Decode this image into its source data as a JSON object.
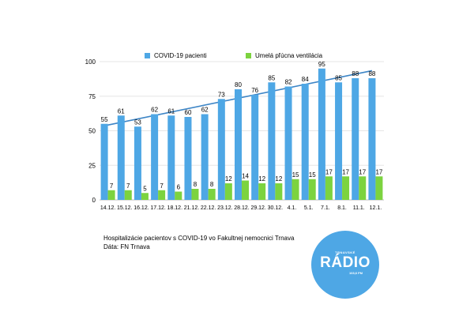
{
  "chart_data": {
    "type": "bar",
    "categories": [
      "14.12.",
      "15.12.",
      "16.12.",
      "17.12.",
      "18.12.",
      "21.12.",
      "22.12.",
      "23.12.",
      "28.12.",
      "29.12.",
      "30.12.",
      "4.1.",
      "5.1.",
      "7.1.",
      "8.1.",
      "11.1.",
      "12.1."
    ],
    "series": [
      {
        "name": "COVID-19 pacienti",
        "color": "#4ea7e5",
        "values": [
          55,
          61,
          53,
          62,
          61,
          60,
          62,
          73,
          80,
          76,
          85,
          82,
          84,
          95,
          85,
          88,
          88
        ]
      },
      {
        "name": "Umelá pľúcna ventilácia",
        "color": "#7cd33f",
        "values": [
          7,
          7,
          5,
          7,
          6,
          8,
          8,
          12,
          14,
          12,
          12,
          15,
          15,
          17,
          17,
          17,
          17
        ]
      }
    ],
    "trendline": {
      "series": "COVID-19 pacienti",
      "color": "#3d85c6"
    },
    "yticks": [
      0,
      25,
      50,
      75,
      100
    ],
    "ylim": [
      0,
      100
    ],
    "grid": true,
    "legend": "top"
  },
  "caption": {
    "line1": "Hospitalizácie pacientov s COVID-19 vo Fakultnej nemocnici Trnava",
    "line2": "Dáta: FN Trnava"
  },
  "logo": {
    "top_text": "TRNAVSKÉ",
    "main_text": "RÁDIO",
    "freq_text": "103,6 FM"
  }
}
